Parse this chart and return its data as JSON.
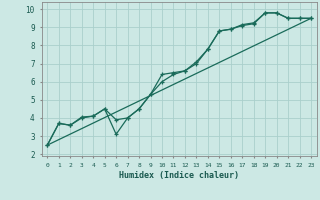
{
  "title": "",
  "xlabel": "Humidex (Indice chaleur)",
  "ylabel": "",
  "background_color": "#cce8e4",
  "grid_color": "#aacfcc",
  "line_color": "#1a6b5a",
  "xlim": [
    -0.5,
    23.5
  ],
  "ylim": [
    1.9,
    10.4
  ],
  "xtick_labels": [
    "0",
    "1",
    "2",
    "3",
    "4",
    "5",
    "6",
    "7",
    "8",
    "9",
    "10",
    "11",
    "12",
    "13",
    "14",
    "15",
    "16",
    "17",
    "18",
    "19",
    "20",
    "21",
    "22",
    "23"
  ],
  "ytick_labels": [
    "2",
    "3",
    "4",
    "5",
    "6",
    "7",
    "8",
    "9",
    "10"
  ],
  "ytick_vals": [
    2,
    3,
    4,
    5,
    6,
    7,
    8,
    9,
    10
  ],
  "series1_x": [
    0,
    1,
    2,
    3,
    4,
    5,
    6,
    7,
    8,
    9,
    10,
    11,
    12,
    13,
    14,
    15,
    16,
    17,
    18,
    19,
    20,
    21,
    22,
    23
  ],
  "series1_y": [
    2.5,
    3.7,
    3.6,
    4.0,
    4.1,
    4.5,
    3.9,
    4.0,
    4.5,
    5.3,
    6.4,
    6.5,
    6.6,
    7.1,
    7.8,
    8.8,
    8.9,
    9.15,
    9.25,
    9.8,
    9.8,
    9.5,
    9.5,
    9.5
  ],
  "series2_x": [
    0,
    1,
    2,
    3,
    4,
    5,
    6,
    7,
    8,
    9,
    10,
    11,
    12,
    13,
    14,
    15,
    16,
    17,
    18,
    19,
    20,
    21,
    22,
    23
  ],
  "series2_y": [
    2.5,
    3.7,
    3.6,
    4.05,
    4.1,
    4.5,
    3.1,
    4.0,
    4.5,
    5.3,
    6.0,
    6.4,
    6.6,
    7.0,
    7.8,
    8.8,
    8.9,
    9.1,
    9.2,
    9.8,
    9.8,
    9.5,
    9.5,
    9.5
  ],
  "series3_x": [
    0,
    23
  ],
  "series3_y": [
    2.5,
    9.5
  ]
}
